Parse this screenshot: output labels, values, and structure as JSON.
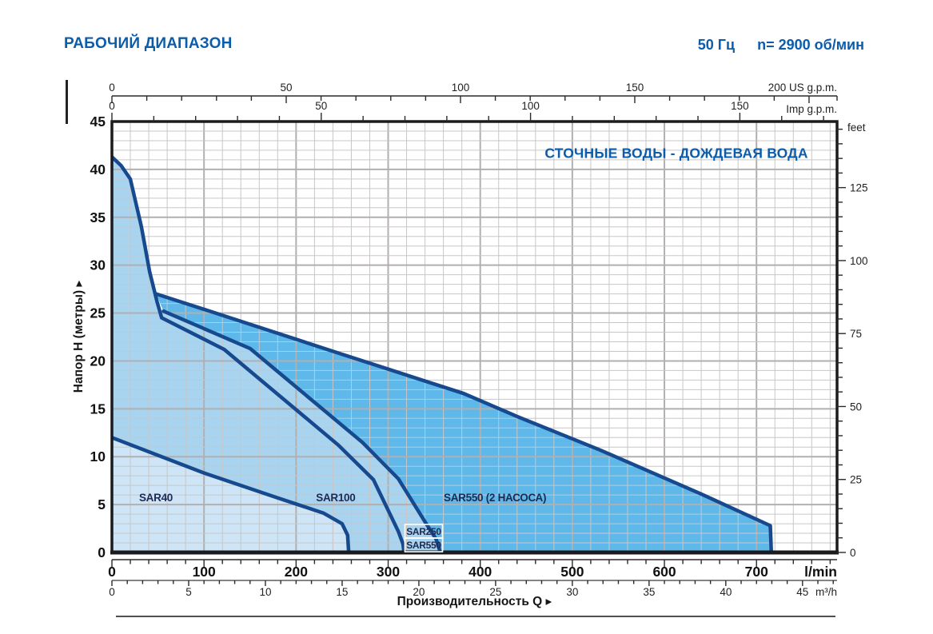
{
  "header": {
    "title": "РАБОЧИЙ ДИАПАЗОН",
    "frequency": "50 Гц",
    "speed": "n= 2900 об/мин"
  },
  "colors": {
    "accent_blue": "#0b5cab",
    "curve_navy": "#17498f",
    "fill_dark": "#5eb8e9",
    "fill_light": "#a8d4f0",
    "fill_lightest": "#cde5f6",
    "grid_minor": "#c9c6c6",
    "grid_major": "#b2afaf",
    "frame": "#1b1b1d",
    "text_black": "#111111",
    "series_label": "#1d2a52",
    "label_box_border": "#ffffff"
  },
  "chart_data": {
    "type": "area",
    "title": "СТОЧНЫЕ ВОДЫ - ДОЖДЕВАЯ ВОДА",
    "title_pos": {
      "q": 613,
      "h": 41.55
    },
    "xlabel": "Производительность Q",
    "ylabel": "Напор H (метры)",
    "grid": true,
    "x_primary": {
      "unit": "l/min",
      "range": [
        0,
        787.5
      ],
      "major_ticks": [
        0,
        100,
        200,
        300,
        400,
        500,
        600,
        700
      ],
      "minor_step": 20
    },
    "x_m3h": {
      "unit": "m³/h",
      "major_ticks": [
        0,
        5,
        10,
        15,
        20,
        25,
        30,
        35,
        40,
        45
      ],
      "minor_step": 1,
      "lmin_per_unit": 16.6667
    },
    "x_usgpm": {
      "unit": "US g.p.m.",
      "major_ticks": [
        0,
        50,
        100,
        150
      ],
      "last_tick_label": "200 US g.p.m.",
      "last_tick_value": 200,
      "minor_step": 10,
      "lmin_per_unit": 3.7854
    },
    "x_impgpm": {
      "unit": "Imp g.p.m.",
      "major_ticks": [
        0,
        50,
        100,
        150
      ],
      "minor_step": 10,
      "lmin_per_unit": 4.5461
    },
    "y_primary": {
      "unit": "м",
      "range": [
        0,
        45
      ],
      "major_ticks": [
        0,
        5,
        10,
        15,
        20,
        25,
        30,
        35,
        40,
        45
      ],
      "minor_step": 1
    },
    "y_feet": {
      "unit": "feet",
      "major_ticks": [
        0,
        25,
        50,
        75,
        100,
        125
      ],
      "minor_step": 5,
      "m_per_unit": 0.3048
    },
    "series": [
      {
        "id": "sar550-2",
        "label": "SAR550 (2 НАСОСА)",
        "label_pos": {
          "q": 416,
          "h": 5.68
        },
        "label_anchor": "middle",
        "fill_key": "fill_dark",
        "curve": [
          [
            48,
            27
          ],
          [
            122,
            24.7
          ],
          [
            250,
            20.7
          ],
          [
            382,
            16.6
          ],
          [
            440,
            14.2
          ],
          [
            530,
            10.7
          ],
          [
            640,
            6.1
          ],
          [
            715,
            2.8
          ],
          [
            716,
            0.2
          ]
        ],
        "region": [
          [
            48,
            27
          ],
          [
            122,
            24.7
          ],
          [
            250,
            20.7
          ],
          [
            382,
            16.6
          ],
          [
            440,
            14.2
          ],
          [
            530,
            10.7
          ],
          [
            640,
            6.1
          ],
          [
            715,
            2.8
          ],
          [
            716,
            0
          ],
          [
            356,
            0
          ],
          [
            352,
            1.4
          ],
          [
            340,
            3.2
          ],
          [
            311,
            7.7
          ],
          [
            272,
            11.5
          ],
          [
            150,
            21.3
          ],
          [
            56,
            25.2
          ]
        ]
      },
      {
        "id": "sar250-sar550",
        "boxed_labels": [
          {
            "text": "SAR250",
            "q": 338.6,
            "h": 2.21
          },
          {
            "text": "SAR550",
            "q": 338.6,
            "h": 0.79
          }
        ],
        "fill_key": "fill_light",
        "curve": [
          [
            56,
            25.2
          ],
          [
            150,
            21.3
          ],
          [
            272,
            11.5
          ],
          [
            311,
            7.7
          ],
          [
            340,
            3.2
          ],
          [
            352,
            1.4
          ],
          [
            356,
            0.2
          ]
        ],
        "region": [
          [
            54,
            24.5
          ],
          [
            122,
            21.2
          ],
          [
            246,
            11.2
          ],
          [
            284,
            7.6
          ],
          [
            311,
            2.2
          ],
          [
            316,
            0.9
          ],
          [
            317,
            0
          ],
          [
            356,
            0
          ],
          [
            352,
            1.4
          ],
          [
            340,
            3.2
          ],
          [
            311,
            7.7
          ],
          [
            272,
            11.5
          ],
          [
            150,
            21.3
          ],
          [
            56,
            25.2
          ]
        ]
      },
      {
        "id": "sar100",
        "label": "SAR100",
        "label_pos": {
          "q": 243,
          "h": 5.68
        },
        "label_anchor": "middle",
        "fill_key": "fill_light",
        "curve": [
          [
            0,
            41.3
          ],
          [
            10,
            40.4
          ],
          [
            20,
            39
          ],
          [
            32,
            34
          ],
          [
            41,
            29.3
          ],
          [
            49,
            26.2
          ],
          [
            54,
            24.5
          ],
          [
            122,
            21.2
          ],
          [
            246,
            11.2
          ],
          [
            284,
            7.6
          ],
          [
            311,
            2.2
          ],
          [
            316,
            0.9
          ],
          [
            317,
            0.2
          ]
        ],
        "region": [
          [
            0,
            41.3
          ],
          [
            10,
            40.4
          ],
          [
            20,
            39
          ],
          [
            32,
            34
          ],
          [
            41,
            29.3
          ],
          [
            49,
            26.2
          ],
          [
            54,
            24.5
          ],
          [
            122,
            21.2
          ],
          [
            246,
            11.2
          ],
          [
            284,
            7.6
          ],
          [
            311,
            2.2
          ],
          [
            316,
            0.9
          ],
          [
            317,
            0
          ],
          [
            0,
            0
          ]
        ]
      },
      {
        "id": "sar40",
        "label": "SAR40",
        "label_pos": {
          "q": 29.5,
          "h": 5.68
        },
        "label_anchor": "start",
        "fill_key": "fill_lightest",
        "curve": [
          [
            0,
            12
          ],
          [
            100,
            8.3
          ],
          [
            180,
            5.7
          ],
          [
            230,
            4.1
          ],
          [
            250,
            3.0
          ],
          [
            256,
            1.8
          ],
          [
            257,
            0.2
          ]
        ],
        "region": [
          [
            0,
            12
          ],
          [
            100,
            8.3
          ],
          [
            180,
            5.7
          ],
          [
            230,
            4.1
          ],
          [
            250,
            3.0
          ],
          [
            256,
            1.8
          ],
          [
            257,
            0
          ],
          [
            0,
            0
          ]
        ]
      }
    ]
  }
}
